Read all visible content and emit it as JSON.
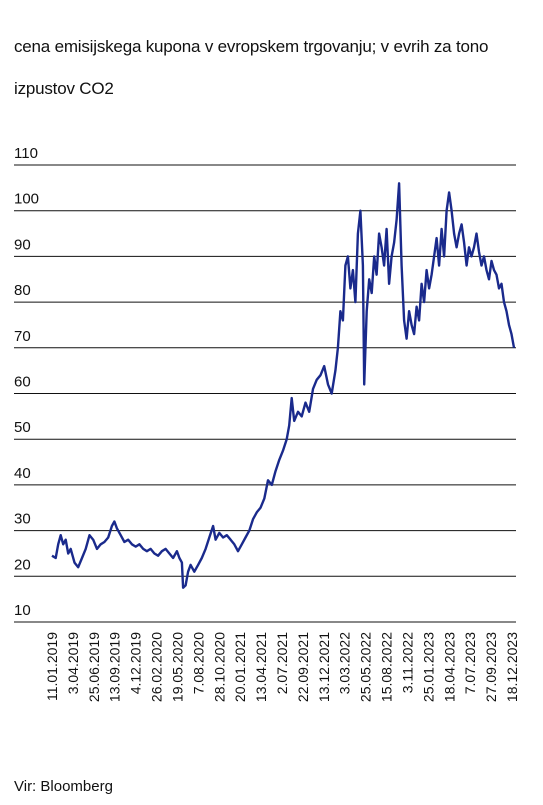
{
  "title": "cena emisijskega kupona v evropskem trgovanju; v evrih za tono izpustov CO2",
  "source": "Vir: Bloomberg",
  "colors": {
    "line": "#1a2a8c",
    "grid": "#111111",
    "text": "#111111"
  },
  "chart_data": {
    "type": "line",
    "title": "cena emisijskega kupona v evropskem trgovanju; v evrih za tono izpustov CO2",
    "xlabel": "",
    "ylabel": "",
    "ylim": [
      10,
      110
    ],
    "y_ticks": [
      10,
      20,
      30,
      40,
      50,
      60,
      70,
      80,
      90,
      100,
      110
    ],
    "grid": true,
    "x_tick_labels": [
      "11.01.2019",
      "3.04.2019",
      "25.06.2019",
      "13.09.2019",
      "4.12.2019",
      "26.02.2020",
      "19.05.2020",
      "7.08.2020",
      "28.10.2020",
      "20.01.2021",
      "13.04.2021",
      "2.07.2021",
      "22.09.2021",
      "13.12.2021",
      "3.03.2022",
      "25.05.2022",
      "15.08.2022",
      "3.11.2022",
      "25.01.2023",
      "18.04.2023",
      "7.07.2023",
      "27.09.2023",
      "18.12.2023"
    ],
    "series": [
      {
        "values": [
          [
            0,
            24.5
          ],
          [
            3,
            24.0
          ],
          [
            5,
            27.0
          ],
          [
            7,
            29.0
          ],
          [
            9,
            27.0
          ],
          [
            11,
            28.0
          ],
          [
            13,
            25.0
          ],
          [
            15,
            26.0
          ],
          [
            18,
            23.0
          ],
          [
            21,
            22.0
          ],
          [
            24,
            24.0
          ],
          [
            27,
            26.0
          ],
          [
            30,
            29.0
          ],
          [
            33,
            28.0
          ],
          [
            36,
            26.0
          ],
          [
            39,
            27.0
          ],
          [
            42,
            27.5
          ],
          [
            45,
            28.5
          ],
          [
            48,
            31.0
          ],
          [
            50,
            32.0
          ],
          [
            52,
            30.5
          ],
          [
            55,
            29.0
          ],
          [
            58,
            27.5
          ],
          [
            61,
            28.0
          ],
          [
            64,
            27.0
          ],
          [
            67,
            26.5
          ],
          [
            70,
            27.0
          ],
          [
            73,
            26.0
          ],
          [
            76,
            25.5
          ],
          [
            79,
            26.0
          ],
          [
            82,
            25.0
          ],
          [
            85,
            24.5
          ],
          [
            88,
            25.5
          ],
          [
            91,
            26.0
          ],
          [
            94,
            25.0
          ],
          [
            97,
            24.0
          ],
          [
            100,
            25.5
          ],
          [
            102,
            24.0
          ],
          [
            104,
            23.0
          ],
          [
            105,
            17.5
          ],
          [
            107,
            18.0
          ],
          [
            109,
            21.0
          ],
          [
            111,
            22.5
          ],
          [
            114,
            21.0
          ],
          [
            117,
            22.5
          ],
          [
            120,
            24.0
          ],
          [
            123,
            26.0
          ],
          [
            126,
            28.5
          ],
          [
            129,
            31.0
          ],
          [
            131,
            28.0
          ],
          [
            134,
            29.5
          ],
          [
            137,
            28.5
          ],
          [
            140,
            29.0
          ],
          [
            143,
            28.0
          ],
          [
            146,
            27.0
          ],
          [
            149,
            25.5
          ],
          [
            152,
            27.0
          ],
          [
            155,
            28.5
          ],
          [
            158,
            30.0
          ],
          [
            161,
            32.5
          ],
          [
            164,
            34.0
          ],
          [
            167,
            35.0
          ],
          [
            170,
            37.0
          ],
          [
            173,
            41.0
          ],
          [
            176,
            40.0
          ],
          [
            179,
            43.0
          ],
          [
            182,
            45.5
          ],
          [
            185,
            47.5
          ],
          [
            188,
            50.0
          ],
          [
            190,
            53.0
          ],
          [
            192,
            59.0
          ],
          [
            194,
            54.0
          ],
          [
            197,
            56.0
          ],
          [
            200,
            55.0
          ],
          [
            203,
            58.0
          ],
          [
            206,
            56.0
          ],
          [
            209,
            61.0
          ],
          [
            212,
            63.0
          ],
          [
            215,
            64.0
          ],
          [
            218,
            66.0
          ],
          [
            221,
            62.0
          ],
          [
            224,
            60.0
          ],
          [
            227,
            65.0
          ],
          [
            229,
            70.0
          ],
          [
            231,
            78.0
          ],
          [
            233,
            76.0
          ],
          [
            235,
            88.0
          ],
          [
            237,
            90.0
          ],
          [
            239,
            83.0
          ],
          [
            241,
            87.0
          ],
          [
            243,
            80.0
          ],
          [
            245,
            95.0
          ],
          [
            247,
            100.0
          ],
          [
            249,
            88.0
          ],
          [
            250,
            62.0
          ],
          [
            252,
            78.0
          ],
          [
            254,
            85.0
          ],
          [
            256,
            82.0
          ],
          [
            258,
            90.0
          ],
          [
            260,
            86.0
          ],
          [
            262,
            95.0
          ],
          [
            264,
            92.0
          ],
          [
            266,
            88.0
          ],
          [
            268,
            96.0
          ],
          [
            270,
            84.0
          ],
          [
            272,
            90.0
          ],
          [
            274,
            93.0
          ],
          [
            276,
            98.0
          ],
          [
            278,
            106.0
          ],
          [
            280,
            88.0
          ],
          [
            282,
            76.0
          ],
          [
            284,
            72.0
          ],
          [
            286,
            78.0
          ],
          [
            288,
            75.0
          ],
          [
            290,
            73.0
          ],
          [
            292,
            79.0
          ],
          [
            294,
            76.0
          ],
          [
            296,
            84.0
          ],
          [
            298,
            80.0
          ],
          [
            300,
            87.0
          ],
          [
            302,
            83.0
          ],
          [
            304,
            86.0
          ],
          [
            306,
            90.0
          ],
          [
            308,
            94.0
          ],
          [
            310,
            88.0
          ],
          [
            312,
            96.0
          ],
          [
            314,
            90.0
          ],
          [
            316,
            100.0
          ],
          [
            318,
            104.0
          ],
          [
            320,
            100.0
          ],
          [
            322,
            95.0
          ],
          [
            324,
            92.0
          ],
          [
            326,
            95.0
          ],
          [
            328,
            97.0
          ],
          [
            330,
            93.0
          ],
          [
            332,
            88.0
          ],
          [
            334,
            92.0
          ],
          [
            336,
            90.0
          ],
          [
            338,
            92.0
          ],
          [
            340,
            95.0
          ],
          [
            342,
            91.0
          ],
          [
            344,
            88.0
          ],
          [
            346,
            90.0
          ],
          [
            348,
            87.0
          ],
          [
            350,
            85.0
          ],
          [
            352,
            89.0
          ],
          [
            354,
            87.0
          ],
          [
            356,
            86.0
          ],
          [
            358,
            83.0
          ],
          [
            360,
            84.0
          ],
          [
            362,
            80.0
          ],
          [
            364,
            78.0
          ],
          [
            366,
            75.0
          ],
          [
            368,
            73.0
          ],
          [
            370,
            70.0
          ]
        ]
      }
    ]
  }
}
